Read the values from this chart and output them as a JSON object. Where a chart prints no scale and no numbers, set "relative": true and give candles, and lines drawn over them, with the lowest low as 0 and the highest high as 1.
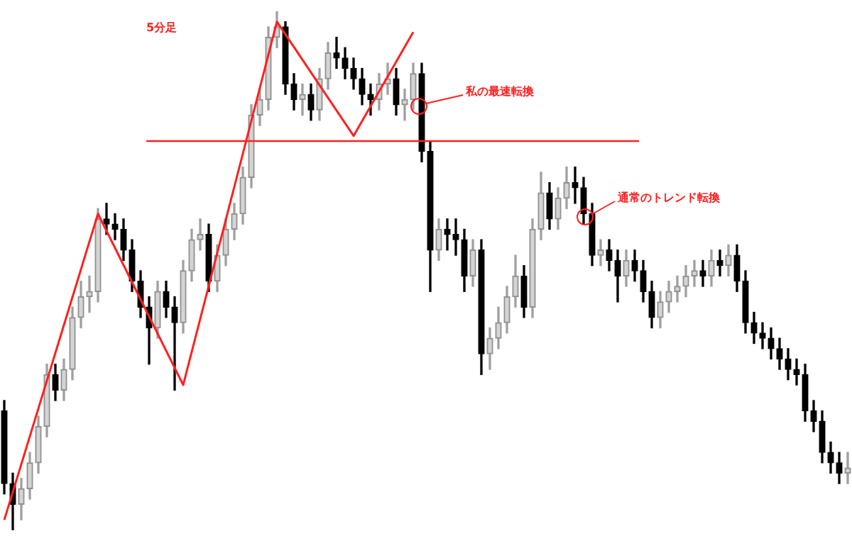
{
  "chart_data": {
    "type": "candlestick",
    "title": "5分足",
    "relative": true,
    "tick_labels": false,
    "categories": [
      null,
      null,
      null,
      null,
      null,
      null,
      null,
      null,
      null,
      null,
      null,
      null,
      null,
      null,
      null,
      null,
      null,
      null,
      null,
      null,
      null,
      null,
      null,
      null,
      null,
      null,
      null,
      null,
      null,
      null,
      null,
      null,
      null,
      null,
      null,
      null,
      null,
      null,
      null,
      null,
      null,
      null,
      null,
      null,
      null,
      null,
      null,
      null,
      null,
      null,
      null,
      null,
      null,
      null,
      null,
      null,
      null,
      null,
      null,
      null,
      null,
      null,
      null,
      null,
      null,
      null,
      null,
      null,
      null,
      null,
      null,
      null,
      null,
      null,
      null,
      null,
      null,
      null,
      null,
      null,
      null,
      null,
      null,
      null,
      null,
      null,
      null,
      null,
      null,
      null,
      null,
      null,
      null,
      null,
      null,
      null,
      null,
      null,
      null,
      null
    ],
    "ohlc": [
      [
        0.23,
        0.25,
        0.07,
        0.09
      ],
      [
        0.09,
        0.11,
        0,
        0.05
      ],
      [
        0.05,
        0.1,
        0.02,
        0.08
      ],
      [
        0.08,
        0.15,
        0.06,
        0.13
      ],
      [
        0.13,
        0.22,
        0.11,
        0.2
      ],
      [
        0.2,
        0.32,
        0.18,
        0.3
      ],
      [
        0.3,
        0.32,
        0.25,
        0.27
      ],
      [
        0.27,
        0.33,
        0.25,
        0.31
      ],
      [
        0.31,
        0.43,
        0.29,
        0.41
      ],
      [
        0.41,
        0.48,
        0.39,
        0.45
      ],
      [
        0.45,
        0.49,
        0.42,
        0.46
      ],
      [
        0.46,
        0.62,
        0.44,
        0.6
      ],
      [
        0.6,
        0.63,
        0.57,
        0.59
      ],
      [
        0.59,
        0.61,
        0.56,
        0.58
      ],
      [
        0.58,
        0.6,
        0.52,
        0.54
      ],
      [
        0.54,
        0.56,
        0.46,
        0.48
      ],
      [
        0.48,
        0.5,
        0.41,
        0.43
      ],
      [
        0.43,
        0.45,
        0.32,
        0.39
      ],
      [
        0.39,
        0.48,
        0.37,
        0.46
      ],
      [
        0.46,
        0.48,
        0.41,
        0.43
      ],
      [
        0.43,
        0.45,
        0.27,
        0.4
      ],
      [
        0.4,
        0.52,
        0.38,
        0.5
      ],
      [
        0.5,
        0.58,
        0.48,
        0.56
      ],
      [
        0.56,
        0.6,
        0.54,
        0.57
      ],
      [
        0.57,
        0.59,
        0.46,
        0.48
      ],
      [
        0.48,
        0.55,
        0.46,
        0.53
      ],
      [
        0.53,
        0.6,
        0.51,
        0.58
      ],
      [
        0.58,
        0.63,
        0.56,
        0.61
      ],
      [
        0.61,
        0.7,
        0.59,
        0.68
      ],
      [
        0.68,
        0.82,
        0.66,
        0.8
      ],
      [
        0.8,
        0.85,
        0.78,
        0.83
      ],
      [
        0.83,
        0.97,
        0.81,
        0.95
      ],
      [
        0.95,
        1,
        0.93,
        0.97
      ],
      [
        0.97,
        0.98,
        0.84,
        0.86
      ],
      [
        0.86,
        0.88,
        0.81,
        0.83
      ],
      [
        0.83,
        0.86,
        0.8,
        0.84
      ],
      [
        0.84,
        0.86,
        0.79,
        0.81
      ],
      [
        0.81,
        0.89,
        0.79,
        0.87
      ],
      [
        0.87,
        0.94,
        0.85,
        0.92
      ],
      [
        0.92,
        0.95,
        0.89,
        0.91
      ],
      [
        0.91,
        0.93,
        0.87,
        0.89
      ],
      [
        0.89,
        0.91,
        0.85,
        0.87
      ],
      [
        0.87,
        0.89,
        0.82,
        0.84
      ],
      [
        0.84,
        0.86,
        0.8,
        0.83
      ],
      [
        0.83,
        0.88,
        0.81,
        0.86
      ],
      [
        0.86,
        0.9,
        0.84,
        0.87
      ],
      [
        0.87,
        0.89,
        0.8,
        0.82
      ],
      [
        0.82,
        0.85,
        0.79,
        0.83
      ],
      [
        0.83,
        0.9,
        0.81,
        0.88
      ],
      [
        0.88,
        0.9,
        0.71,
        0.73
      ],
      [
        0.73,
        0.75,
        0.46,
        0.54
      ],
      [
        0.54,
        0.6,
        0.52,
        0.58
      ],
      [
        0.58,
        0.6,
        0.54,
        0.57
      ],
      [
        0.57,
        0.6,
        0.53,
        0.56
      ],
      [
        0.56,
        0.58,
        0.46,
        0.49
      ],
      [
        0.49,
        0.56,
        0.47,
        0.54
      ],
      [
        0.54,
        0.56,
        0.3,
        0.34
      ],
      [
        0.34,
        0.39,
        0.31,
        0.37
      ],
      [
        0.37,
        0.43,
        0.35,
        0.4
      ],
      [
        0.4,
        0.47,
        0.38,
        0.45
      ],
      [
        0.45,
        0.53,
        0.43,
        0.49
      ],
      [
        0.49,
        0.51,
        0.41,
        0.43
      ],
      [
        0.43,
        0.6,
        0.41,
        0.58
      ],
      [
        0.58,
        0.69,
        0.56,
        0.65
      ],
      [
        0.65,
        0.67,
        0.58,
        0.6
      ],
      [
        0.6,
        0.66,
        0.58,
        0.64
      ],
      [
        0.64,
        0.7,
        0.62,
        0.67
      ],
      [
        0.67,
        0.7,
        0.63,
        0.66
      ],
      [
        0.66,
        0.68,
        0.59,
        0.61
      ],
      [
        0.61,
        0.63,
        0.51,
        0.53
      ],
      [
        0.53,
        0.56,
        0.51,
        0.54
      ],
      [
        0.54,
        0.56,
        0.5,
        0.52
      ],
      [
        0.52,
        0.54,
        0.44,
        0.49
      ],
      [
        0.49,
        0.54,
        0.47,
        0.52
      ],
      [
        0.52,
        0.54,
        0.48,
        0.5
      ],
      [
        0.5,
        0.52,
        0.44,
        0.46
      ],
      [
        0.46,
        0.48,
        0.39,
        0.41
      ],
      [
        0.41,
        0.46,
        0.39,
        0.44
      ],
      [
        0.44,
        0.48,
        0.42,
        0.46
      ],
      [
        0.46,
        0.49,
        0.44,
        0.47
      ],
      [
        0.47,
        0.51,
        0.45,
        0.49
      ],
      [
        0.49,
        0.52,
        0.47,
        0.5
      ],
      [
        0.5,
        0.52,
        0.47,
        0.49
      ],
      [
        0.49,
        0.54,
        0.47,
        0.52
      ],
      [
        0.52,
        0.54,
        0.49,
        0.51
      ],
      [
        0.51,
        0.55,
        0.49,
        0.53
      ],
      [
        0.53,
        0.55,
        0.46,
        0.48
      ],
      [
        0.48,
        0.5,
        0.38,
        0.4
      ],
      [
        0.4,
        0.42,
        0.36,
        0.38
      ],
      [
        0.38,
        0.4,
        0.35,
        0.37
      ],
      [
        0.37,
        0.39,
        0.33,
        0.35
      ],
      [
        0.35,
        0.37,
        0.31,
        0.33
      ],
      [
        0.33,
        0.35,
        0.29,
        0.31
      ],
      [
        0.31,
        0.33,
        0.28,
        0.3
      ],
      [
        0.3,
        0.32,
        0.21,
        0.23
      ],
      [
        0.23,
        0.25,
        0.19,
        0.21
      ],
      [
        0.21,
        0.23,
        0.13,
        0.15
      ],
      [
        0.15,
        0.17,
        0.11,
        0.13
      ],
      [
        0.13,
        0.15,
        0.09,
        0.11
      ],
      [
        0.11,
        0.15,
        0.09,
        0.12
      ]
    ],
    "series": [
      {
        "type": "line",
        "color": "#ff2020",
        "values": [
          0.02,
          null,
          null,
          null,
          null,
          null,
          null,
          null,
          null,
          null,
          null,
          0.61,
          null,
          null,
          null,
          null,
          null,
          null,
          null,
          null,
          null,
          0.28,
          null,
          null,
          null,
          null,
          null,
          null,
          null,
          null,
          null,
          null,
          0.98,
          null,
          null,
          null,
          null,
          null,
          null,
          null,
          null,
          0.76,
          null,
          null,
          null,
          null,
          null,
          null,
          0.96,
          null,
          null,
          null,
          null,
          null,
          null,
          null,
          null,
          null,
          null,
          null,
          null,
          null,
          null,
          null,
          null,
          null,
          null,
          null,
          null,
          null,
          null,
          null,
          null,
          null,
          null,
          null,
          null,
          null,
          null,
          null,
          null,
          null,
          null,
          null,
          null,
          null,
          null,
          null,
          null,
          null,
          null,
          null,
          null,
          null,
          null,
          null,
          null,
          null,
          null,
          null
        ]
      }
    ],
    "ref_lines": [
      {
        "axis": "y",
        "value": 0.75,
        "color": "#ff2020"
      }
    ],
    "annotations": [
      "私の最速転換",
      "通常のトレンド転換"
    ]
  }
}
